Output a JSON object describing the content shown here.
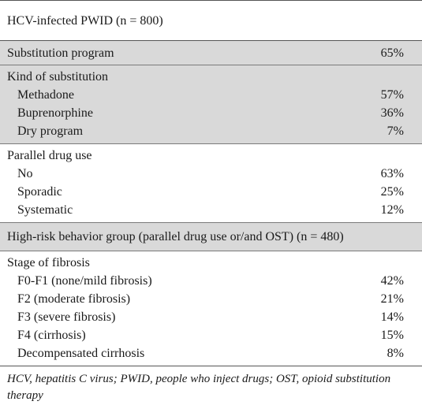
{
  "header": {
    "title": "HCV-infected PWID (n = 800)"
  },
  "sections": {
    "substitution_program": {
      "label": "Substitution program",
      "value": "65%"
    },
    "kind_of_substitution": {
      "label": "Kind of substitution",
      "rows": [
        {
          "label": "Methadone",
          "value": "57%"
        },
        {
          "label": "Buprenorphine",
          "value": "36%"
        },
        {
          "label": "Dry program",
          "value": "7%"
        }
      ]
    },
    "parallel_drug_use": {
      "label": "Parallel drug use",
      "rows": [
        {
          "label": "No",
          "value": "63%"
        },
        {
          "label": "Sporadic",
          "value": "25%"
        },
        {
          "label": "Systematic",
          "value": "12%"
        }
      ]
    },
    "high_risk": {
      "label": "High-risk behavior group (parallel drug use or/and OST) (n = 480)"
    },
    "stage_of_fibrosis": {
      "label": "Stage of fibrosis",
      "rows": [
        {
          "label": "F0-F1 (none/mild fibrosis)",
          "value": "42%"
        },
        {
          "label": "F2 (moderate fibrosis)",
          "value": "21%"
        },
        {
          "label": "F3 (severe fibrosis)",
          "value": "14%"
        },
        {
          "label": "F4 (cirrhosis)",
          "value": "15%"
        },
        {
          "label": "Decompensated cirrhosis",
          "value": "8%"
        }
      ]
    }
  },
  "footnote": "HCV, hepatitis C virus; PWID, people who inject drugs; OST, opioid substitution therapy"
}
